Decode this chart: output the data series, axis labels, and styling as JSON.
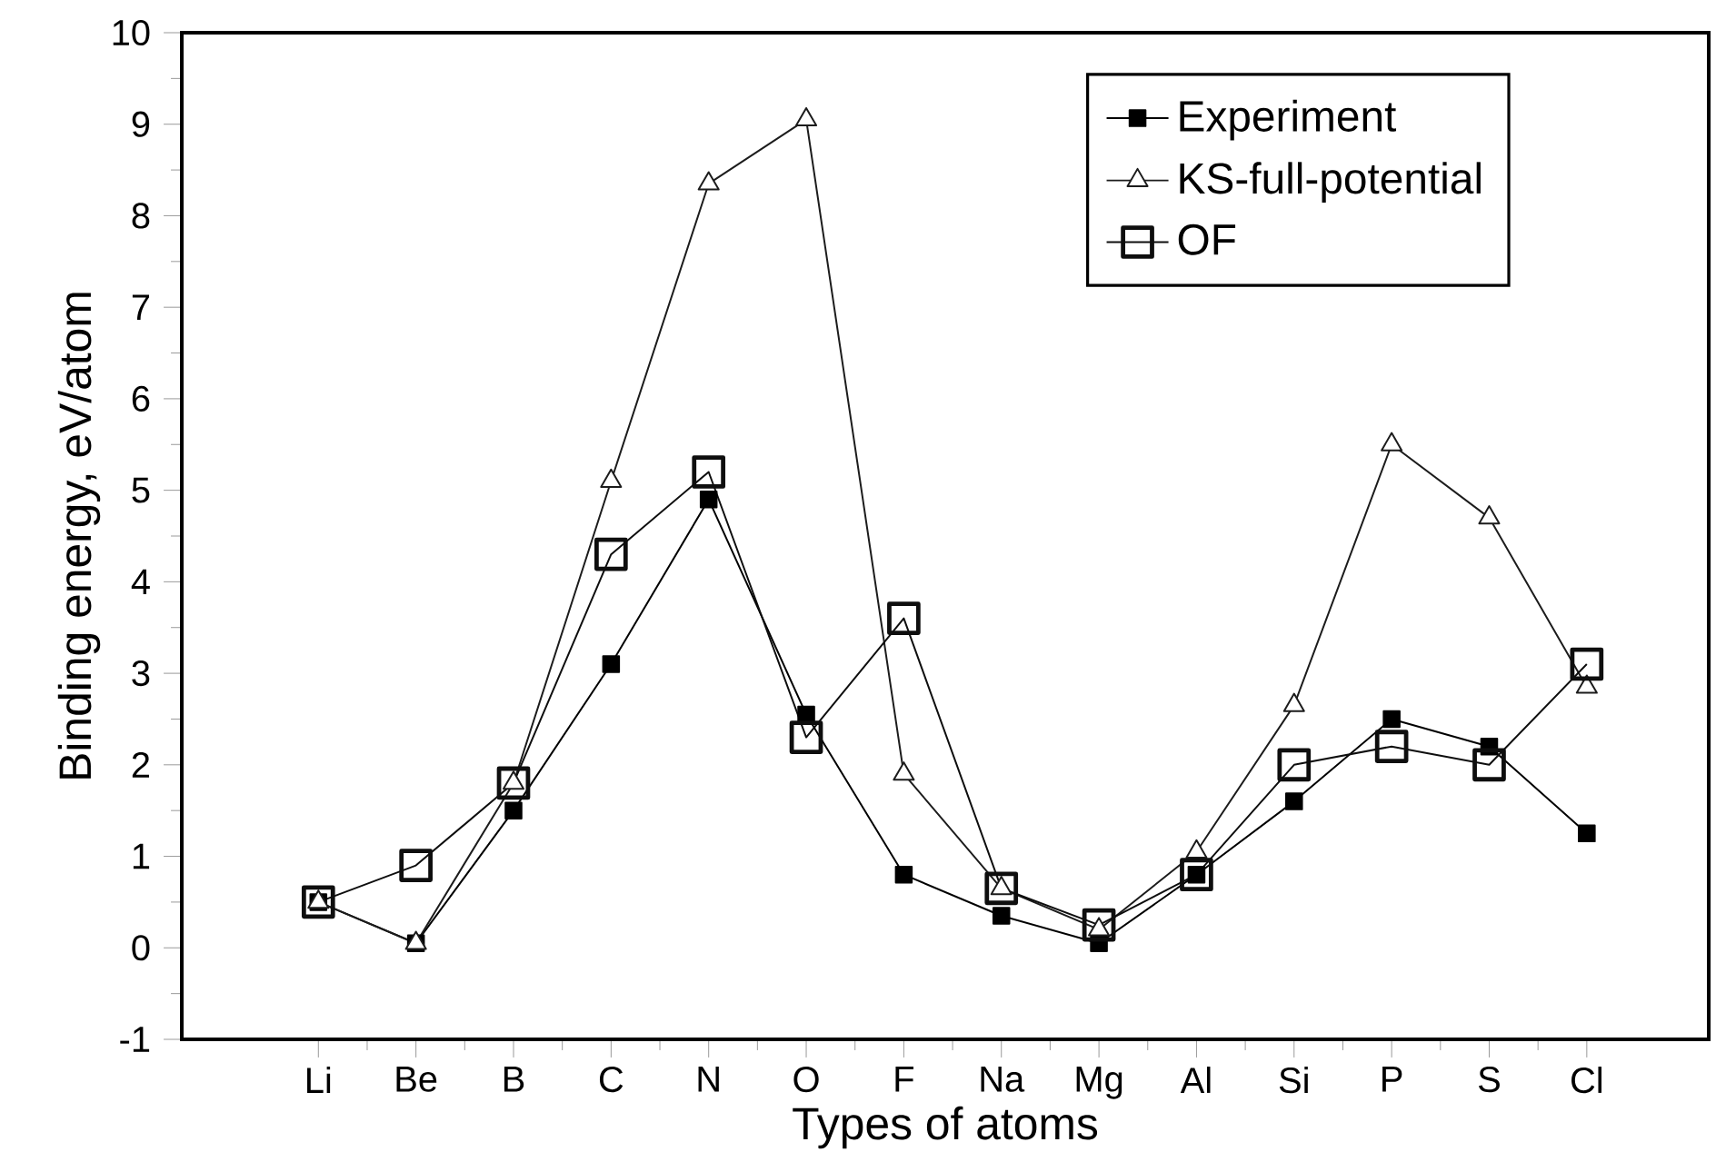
{
  "chart_data": {
    "type": "line",
    "xlabel": "Types of atoms",
    "ylabel": "Binding energy, eV/atom",
    "categories": [
      "Li",
      "Be",
      "B",
      "C",
      "N",
      "O",
      "F",
      "Na",
      "Mg",
      "Al",
      "Si",
      "P",
      "S",
      "Cl"
    ],
    "series": [
      {
        "name": "Experiment",
        "color": "#000000",
        "marker": "square",
        "values": [
          0.5,
          0.05,
          1.5,
          3.1,
          4.9,
          2.55,
          0.8,
          0.35,
          0.05,
          0.8,
          1.6,
          2.5,
          2.2,
          1.25
        ]
      },
      {
        "name": "KS-full-potential",
        "color": "#1c1c1c",
        "marker": "triangle",
        "values": [
          0.5,
          0.05,
          1.8,
          5.1,
          8.35,
          9.05,
          1.9,
          0.65,
          0.2,
          1.05,
          2.65,
          5.5,
          4.7,
          2.85
        ]
      },
      {
        "name": "OF",
        "color": "#0e0e0e",
        "marker": "square",
        "values": [
          0.5,
          0.9,
          1.8,
          4.3,
          5.2,
          2.3,
          3.6,
          0.65,
          0.25,
          0.8,
          2.0,
          2.2,
          2.0,
          3.1
        ]
      }
    ],
    "ylim": [
      -1,
      10
    ],
    "yticks": [
      -1,
      0,
      1,
      2,
      3,
      4,
      5,
      6,
      7,
      8,
      9,
      10
    ],
    "legend": "top right",
    "grid": false,
    "line_style": "solid"
  }
}
